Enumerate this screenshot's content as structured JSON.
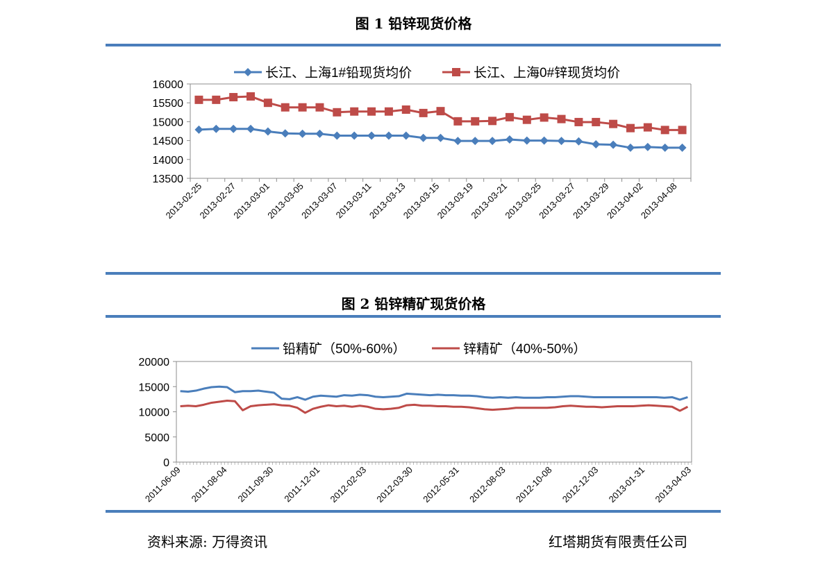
{
  "figure1": {
    "title": "图 1 铅锌现货价格",
    "chart_data": {
      "type": "line",
      "ylim": [
        13500,
        16000
      ],
      "yticks": [
        13500,
        14000,
        14500,
        15000,
        15500,
        16000
      ],
      "grid": false,
      "legend_position": "top",
      "x_tick_labels": [
        "2013-02-25",
        "2013-02-27",
        "2013-03-01",
        "2013-03-05",
        "2013-03-07",
        "2013-03-11",
        "2013-03-13",
        "2013-03-15",
        "2013-03-19",
        "2013-03-21",
        "2013-03-25",
        "2013-03-27",
        "2013-03-29",
        "2013-04-02",
        "2013-04-08"
      ],
      "series": [
        {
          "name": "长江、上海1#铅现货均价",
          "color": "#4a7ebb",
          "marker": "diamond",
          "values": [
            14790,
            14810,
            14810,
            14810,
            14740,
            14690,
            14680,
            14680,
            14630,
            14630,
            14630,
            14630,
            14630,
            14570,
            14570,
            14490,
            14490,
            14490,
            14530,
            14500,
            14500,
            14490,
            14480,
            14400,
            14390,
            14310,
            14330,
            14310,
            14310
          ]
        },
        {
          "name": "长江、上海0#锌现货均价",
          "color": "#be4b48",
          "marker": "square",
          "values": [
            15580,
            15580,
            15650,
            15670,
            15500,
            15380,
            15380,
            15380,
            15250,
            15270,
            15270,
            15270,
            15320,
            15230,
            15280,
            15010,
            15010,
            15020,
            15120,
            15050,
            15110,
            15070,
            14990,
            14990,
            14940,
            14830,
            14850,
            14780,
            14780
          ]
        }
      ]
    }
  },
  "figure2": {
    "title": "图 2 铅锌精矿现货价格",
    "chart_data": {
      "type": "line",
      "ylim": [
        0,
        20000
      ],
      "yticks": [
        0,
        5000,
        10000,
        15000,
        20000
      ],
      "grid": false,
      "legend_position": "top",
      "x_tick_labels": [
        "2011-06-09",
        "2011-08-04",
        "2011-09-30",
        "2011-12-01",
        "2012-02-03",
        "2012-03-30",
        "2012-05-31",
        "2012-08-03",
        "2012-10-08",
        "2012-12-03",
        "2013-01-31",
        "2013-04-03"
      ],
      "series": [
        {
          "name": "铅精矿（50%-60%）",
          "color": "#4a7ebb",
          "values": [
            14100,
            14000,
            14200,
            14600,
            14900,
            15000,
            14900,
            13900,
            14100,
            14100,
            14200,
            14000,
            13800,
            12600,
            12500,
            12900,
            12400,
            13000,
            13200,
            13100,
            13000,
            13300,
            13200,
            13400,
            13300,
            13000,
            12900,
            13000,
            13100,
            13600,
            13500,
            13400,
            13300,
            13400,
            13300,
            13300,
            13200,
            13200,
            13100,
            12900,
            12800,
            12900,
            12800,
            12900,
            12800,
            12800,
            12800,
            12900,
            12900,
            13000,
            13100,
            13100,
            13000,
            12900,
            12900,
            12900,
            12900,
            12900,
            12900,
            12900,
            12900,
            12900,
            12800,
            12900,
            12400,
            12900
          ]
        },
        {
          "name": "锌精矿（40%-50%）",
          "color": "#be4b48",
          "values": [
            11100,
            11200,
            11100,
            11400,
            11800,
            12000,
            12200,
            12100,
            10300,
            11100,
            11300,
            11400,
            11500,
            11300,
            11200,
            10800,
            9800,
            10600,
            11000,
            11300,
            11100,
            11200,
            11000,
            11200,
            11000,
            10600,
            10500,
            10600,
            10800,
            11300,
            11400,
            11200,
            11200,
            11100,
            11100,
            11000,
            11000,
            10900,
            10700,
            10500,
            10400,
            10500,
            10600,
            10800,
            10800,
            10800,
            10800,
            10800,
            10900,
            11100,
            11200,
            11100,
            11000,
            11000,
            10900,
            11000,
            11100,
            11100,
            11100,
            11200,
            11300,
            11200,
            11100,
            11000,
            10200,
            11000
          ]
        }
      ]
    }
  },
  "footer": {
    "source": "资料来源: 万得资讯",
    "company": "红塔期货有限责任公司"
  }
}
